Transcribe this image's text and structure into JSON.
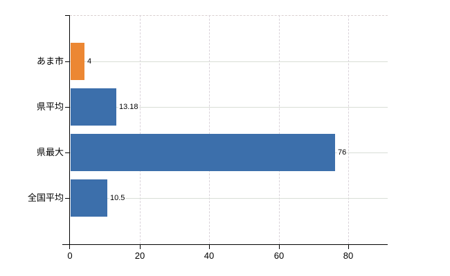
{
  "chart_data": {
    "type": "bar",
    "orientation": "horizontal",
    "title": "",
    "xlabel": "",
    "ylabel": "",
    "legend": false,
    "grid": true,
    "categories": [
      "あま市",
      "県平均",
      "県最大",
      "全国平均"
    ],
    "values": [
      4,
      13.18,
      76,
      10.5
    ],
    "value_labels": [
      "4",
      "13.18",
      "76",
      "10.5"
    ],
    "bar_colors": [
      "#ec8733",
      "#3c6fab",
      "#3c6fab",
      "#3c6fab"
    ],
    "x_ticks": [
      0,
      20,
      40,
      60,
      80
    ],
    "x_tick_labels": [
      "0",
      "20",
      "40",
      "60",
      "80"
    ],
    "xlim": [
      0,
      91.3
    ]
  },
  "colors": {
    "background": "#ffffff",
    "bar_orange": "#ec8733",
    "bar_blue": "#3c6fab",
    "axis": "#000000",
    "h_gridline": "#d8ded6",
    "v_gridline": "#d9d2d9",
    "label_text": "#000000"
  }
}
